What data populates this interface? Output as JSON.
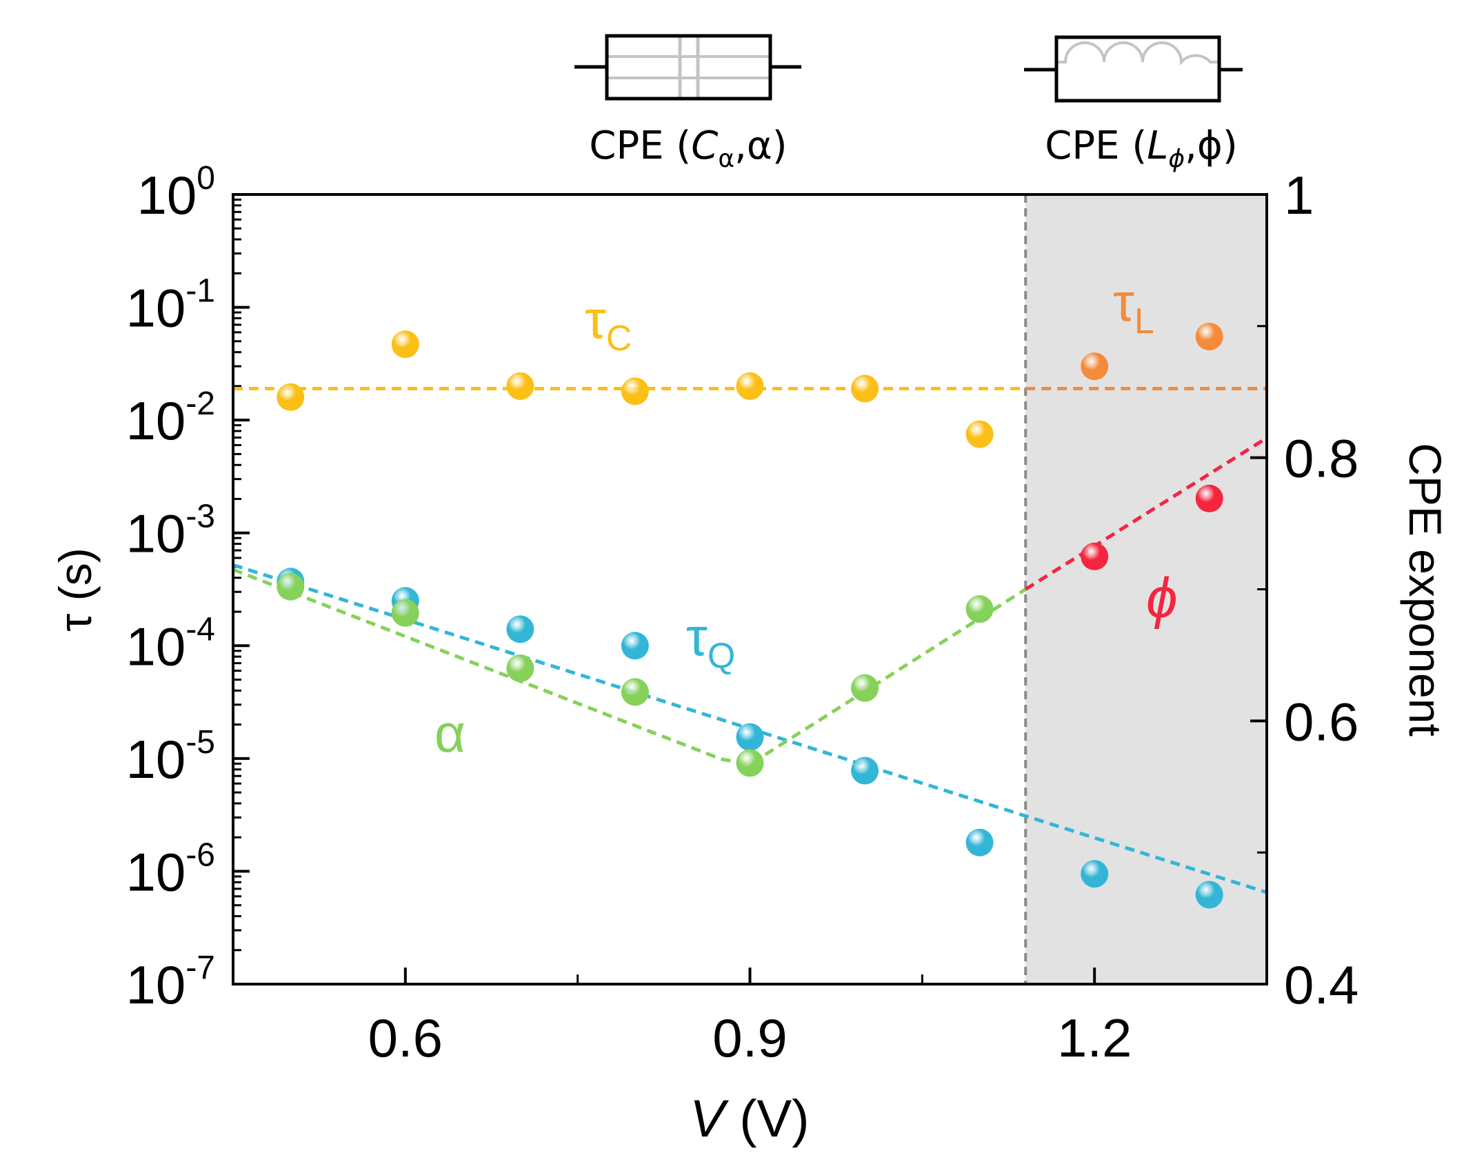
{
  "chart_data": {
    "type": "scatter",
    "xlabel": {
      "var": "V",
      "unit": " (V)"
    },
    "left_axis": {
      "label": "τ (s)",
      "scale": "log",
      "ylim": [
        1e-07,
        1
      ],
      "ticks": [
        {
          "base": "10",
          "exp": "0",
          "value": 1
        },
        {
          "base": "10",
          "exp": "-1",
          "value": 0.1
        },
        {
          "base": "10",
          "exp": "-2",
          "value": 0.01
        },
        {
          "base": "10",
          "exp": "-3",
          "value": 0.001
        },
        {
          "base": "10",
          "exp": "-4",
          "value": 0.0001
        },
        {
          "base": "10",
          "exp": "-5",
          "value": 1e-05
        },
        {
          "base": "10",
          "exp": "-6",
          "value": 1e-06
        },
        {
          "base": "10",
          "exp": "-7",
          "value": 1e-07
        }
      ]
    },
    "right_axis": {
      "label": "CPE exponent",
      "scale": "linear",
      "ylim": [
        0.4,
        1.0
      ],
      "ticks": [
        {
          "label": "1",
          "value": 1.0
        },
        {
          "label": "0.8",
          "value": 0.8
        },
        {
          "label": "0.6",
          "value": 0.6
        },
        {
          "label": "0.4",
          "value": 0.4
        }
      ]
    },
    "x_axis": {
      "xlim": [
        0.45,
        1.35
      ],
      "ticks": [
        {
          "label": "0.6",
          "value": 0.6
        },
        {
          "label": "0.9",
          "value": 0.9
        },
        {
          "label": "1.2",
          "value": 1.2
        }
      ],
      "minor_ticks": [
        0.75,
        1.05
      ]
    },
    "shaded_region": {
      "x_start": 1.14,
      "x_end": 1.35,
      "color": "#e2e2e2",
      "divider_color": "#8a8a8a"
    },
    "series": [
      {
        "name": "τC",
        "main": "τ",
        "sub": "C",
        "axis": "left",
        "color": "#fbbf16",
        "x": [
          0.5,
          0.6,
          0.7,
          0.8,
          0.9,
          1.0,
          1.1
        ],
        "y": [
          0.016,
          0.047,
          0.02,
          0.018,
          0.02,
          0.019,
          0.0075
        ],
        "fit": {
          "x": [
            0.45,
            1.14
          ],
          "y": [
            0.019,
            0.019
          ]
        }
      },
      {
        "name": "τL",
        "main": "τ",
        "sub": "L",
        "axis": "left",
        "color": "#f58a3a",
        "x": [
          1.2,
          1.3
        ],
        "y": [
          0.03,
          0.055
        ],
        "fit": {
          "x": [
            1.14,
            1.35
          ],
          "y": [
            0.019,
            0.019
          ]
        }
      },
      {
        "name": "τQ",
        "main": "τ",
        "sub": "Q",
        "axis": "left",
        "color": "#33b6d6",
        "x": [
          0.5,
          0.6,
          0.7,
          0.8,
          0.9,
          1.0,
          1.1,
          1.2,
          1.3
        ],
        "y": [
          0.00037,
          0.00025,
          0.00014,
          0.0001,
          1.55e-05,
          7.8e-06,
          1.8e-06,
          9.5e-07,
          6.2e-07
        ],
        "fit": {
          "x": [
            0.45,
            1.35
          ],
          "y": [
            0.00052,
            6.5e-07
          ]
        }
      },
      {
        "name": "α",
        "main": "α",
        "sub": "",
        "axis": "right",
        "color": "#86d15a",
        "x": [
          0.5,
          0.6,
          0.7,
          0.8,
          0.9,
          1.0,
          1.1
        ],
        "y": [
          0.702,
          0.682,
          0.64,
          0.622,
          0.568,
          0.625,
          0.685
        ],
        "fit": {
          "x": [
            0.45,
            0.875,
            0.9,
            1.14
          ],
          "y": [
            0.715,
            0.571,
            0.567,
            0.7
          ]
        }
      },
      {
        "name": "ϕ",
        "main": "ϕ",
        "sub": "",
        "axis": "right",
        "color": "#f5243f",
        "x": [
          1.2,
          1.3
        ],
        "y": [
          0.725,
          0.769
        ],
        "fit": {
          "x": [
            1.14,
            1.35
          ],
          "y": [
            0.7,
            0.815
          ]
        }
      }
    ]
  },
  "legend": {
    "capacitor": {
      "prefix": "CPE (",
      "sym": "C",
      "sub": "α",
      "suffix": ",α)"
    },
    "inductor": {
      "prefix": "CPE (",
      "sym": "L",
      "sub": "ϕ",
      "suffix": ",ϕ)"
    }
  }
}
